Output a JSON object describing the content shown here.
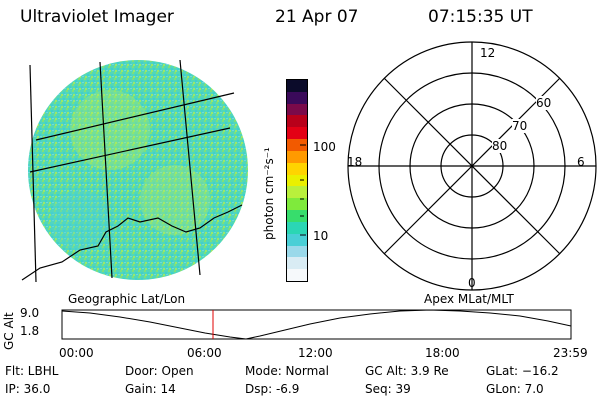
{
  "header": {
    "title": "Ultraviolet Imager",
    "date": "21 Apr 07",
    "time": "07:15:35 UT"
  },
  "colorbar": {
    "unit_label": "photon cm⁻²s⁻¹",
    "ticks": [
      "100",
      "10"
    ],
    "colors": [
      "#0b0b2a",
      "#3a0a5a",
      "#7a0a4a",
      "#b8001a",
      "#e30015",
      "#f25a00",
      "#ff9a00",
      "#ffd400",
      "#eaf000",
      "#b9f03c",
      "#7fea3c",
      "#37dd6c",
      "#2bd6b4",
      "#49cfd6",
      "#9ad9ea",
      "#d9ecf4",
      "#f6f9fb"
    ]
  },
  "polar": {
    "mlt_labels": {
      "top": "12",
      "left": "18",
      "right": "6",
      "bottom": "0"
    },
    "lat_labels": [
      "60",
      "70",
      "80"
    ]
  },
  "labels": {
    "geo": "Geographic Lat/Lon",
    "apex": "Apex MLat/MLT"
  },
  "altitude_plot": {
    "axis_label": "GC Alt",
    "y_ticks": [
      "9.0",
      "1.8"
    ],
    "x_ticks": [
      "00:00",
      "06:00",
      "12:00",
      "18:00",
      "23:59"
    ],
    "marker_color": "#e00000"
  },
  "info": {
    "flt": "Flt: LBHL",
    "door": "Door: Open",
    "mode": "Mode: Normal",
    "gcalt": "GC Alt: 3.9 Re",
    "glat": "GLat: −16.2",
    "ip": "IP: 36.0",
    "gain": "Gain: 14",
    "dsp": "Dsp:    -6.9",
    "seq": "Seq: 39",
    "glon": "GLon:   7.0"
  }
}
